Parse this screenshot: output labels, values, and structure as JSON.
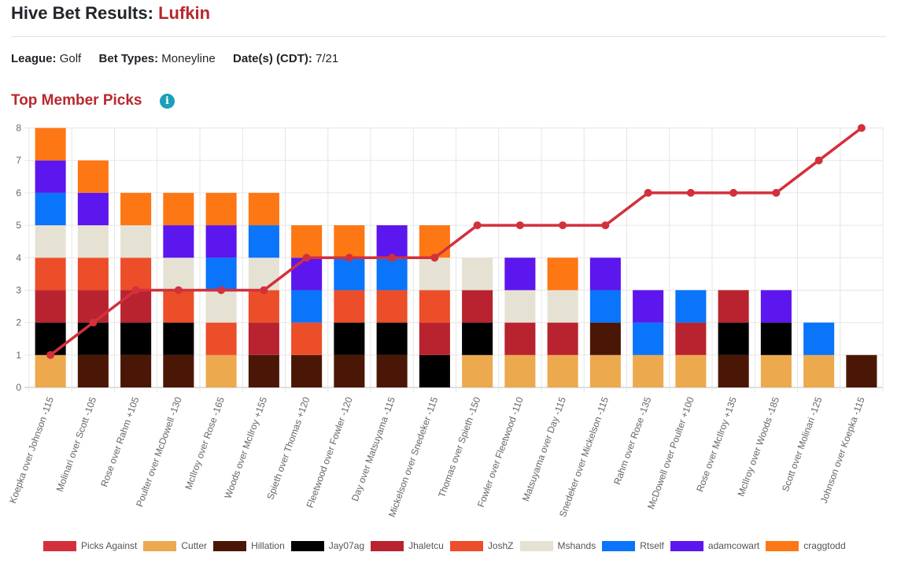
{
  "header": {
    "prefix": "Hive Bet Results:",
    "site": "Lufkin"
  },
  "meta": {
    "league_label": "League:",
    "league_value": "Golf",
    "bet_types_label": "Bet Types:",
    "bet_types_value": "Moneyline",
    "dates_label": "Date(s) (CDT):",
    "dates_value": "7/21"
  },
  "section": {
    "title": "Top Member Picks",
    "info_icon": "info-icon"
  },
  "chart_data": {
    "type": "bar",
    "stacked": true,
    "title": "Top Member Picks",
    "xlabel": "",
    "ylabel": "",
    "ylim": [
      0,
      8
    ],
    "yticks": [
      0,
      1,
      2,
      3,
      4,
      5,
      6,
      7,
      8
    ],
    "grid": true,
    "legend_position": "bottom",
    "categories": [
      "Koepka over Johnson -115",
      "Molinari over Scott -105",
      "Rose over Rahm +105",
      "Poulter over McDowell -130",
      "McIlroy over Rose -165",
      "Woods over McIlroy +155",
      "Spieth over Thomas +120",
      "Fleetwood over Fowler -120",
      "Day over Matsuyama -115",
      "Mickelson over Snedeker -115",
      "Thomas over Spieth -150",
      "Fowler over Fleetwood -110",
      "Matsuyama over Day -115",
      "Snedeker over Mickelson -115",
      "Rahm over Rose -135",
      "McDowell over Poulter +100",
      "Rose over McIlroy +135",
      "McIlroy over Woods -185",
      "Scott over Molinari -125",
      "Johnson over Koepka -115"
    ],
    "series": [
      {
        "name": "Cutter",
        "color": "#eca94e",
        "values": [
          1,
          0,
          0,
          0,
          1,
          0,
          0,
          0,
          0,
          0,
          1,
          1,
          1,
          1,
          1,
          1,
          0,
          1,
          1,
          0
        ]
      },
      {
        "name": "Hillation",
        "color": "#4a1706",
        "values": [
          0,
          1,
          1,
          1,
          0,
          1,
          1,
          1,
          1,
          0,
          0,
          0,
          0,
          1,
          0,
          0,
          1,
          0,
          0,
          1
        ]
      },
      {
        "name": "Jay07ag",
        "color": "#000000",
        "values": [
          1,
          1,
          1,
          1,
          0,
          0,
          0,
          1,
          1,
          1,
          1,
          0,
          0,
          0,
          0,
          0,
          1,
          1,
          0,
          0
        ]
      },
      {
        "name": "Jhaletcu",
        "color": "#b8232f",
        "values": [
          1,
          1,
          1,
          0,
          0,
          1,
          0,
          0,
          0,
          1,
          1,
          1,
          1,
          0,
          0,
          1,
          1,
          0,
          0,
          0
        ]
      },
      {
        "name": "JoshZ",
        "color": "#ec4e2a",
        "values": [
          1,
          1,
          1,
          1,
          1,
          1,
          1,
          1,
          1,
          1,
          0,
          0,
          0,
          0,
          0,
          0,
          0,
          0,
          0,
          0
        ]
      },
      {
        "name": "Mshands",
        "color": "#e6e2d3",
        "values": [
          1,
          1,
          1,
          1,
          1,
          1,
          0,
          0,
          0,
          1,
          1,
          1,
          1,
          0,
          0,
          0,
          0,
          0,
          0,
          0
        ]
      },
      {
        "name": "Rtself",
        "color": "#0a74fa",
        "values": [
          1,
          0,
          0,
          0,
          1,
          1,
          1,
          1,
          1,
          0,
          0,
          0,
          0,
          1,
          1,
          1,
          0,
          0,
          1,
          0
        ]
      },
      {
        "name": "adamcowart",
        "color": "#5c16ee",
        "values": [
          1,
          1,
          0,
          1,
          1,
          0,
          1,
          0,
          1,
          0,
          0,
          1,
          0,
          1,
          1,
          0,
          0,
          1,
          0,
          0
        ]
      },
      {
        "name": "craggtodd",
        "color": "#fd7715",
        "values": [
          1,
          1,
          1,
          1,
          1,
          1,
          1,
          1,
          0,
          1,
          0,
          0,
          1,
          0,
          0,
          0,
          0,
          0,
          0,
          0
        ]
      }
    ],
    "line_series": {
      "name": "Picks Against",
      "color": "#d3303c",
      "values": [
        1,
        2,
        3,
        3,
        3,
        3,
        4,
        4,
        4,
        4,
        5,
        5,
        5,
        5,
        6,
        6,
        6,
        6,
        7,
        8
      ]
    }
  }
}
